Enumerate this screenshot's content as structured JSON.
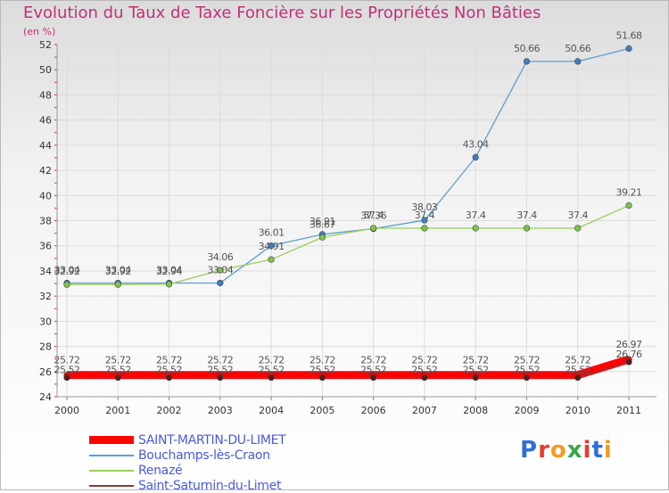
{
  "title": "Evolution du Taux de Taxe Foncière sur les Propriétés Non Bâties",
  "unit_label": "(en %)",
  "logo_text": "Proxiti",
  "chart_data": {
    "type": "line",
    "x": [
      "2000",
      "2001",
      "2002",
      "2003",
      "2004",
      "2005",
      "2006",
      "2007",
      "2008",
      "2009",
      "2010",
      "2011"
    ],
    "ylim": [
      24,
      52
    ],
    "yticks": [
      "24",
      "26",
      "28",
      "30",
      "32",
      "34",
      "36",
      "38",
      "40",
      "42",
      "44",
      "46",
      "48",
      "50",
      "52"
    ],
    "grid": true,
    "legend_position": "bottom-left",
    "series": [
      {
        "name": "SAINT-MARTIN-DU-LIMET",
        "color": "#ff0000",
        "values": [
          25.72,
          25.72,
          25.72,
          25.72,
          25.72,
          25.72,
          25.72,
          25.72,
          25.72,
          25.72,
          25.72,
          26.97
        ],
        "labels": [
          "25.72",
          "25.72",
          "25.72",
          "25.72",
          "25.72",
          "25.72",
          "25.72",
          "25.72",
          "25.72",
          "25.72",
          "25.72",
          "26.97"
        ]
      },
      {
        "name": "Bouchamps-lès-Craon",
        "color": "#5a9fd4",
        "values": [
          33.04,
          33.04,
          33.04,
          33.04,
          36.01,
          36.91,
          37.36,
          38.03,
          43.04,
          50.66,
          50.66,
          51.68
        ],
        "labels": [
          "33.04",
          "33.04",
          "33.04",
          "33.04",
          "36.01",
          "36.91",
          "37.36",
          "38.03",
          "43.04",
          "50.66",
          "50.66",
          "51.68"
        ]
      },
      {
        "name": "Renazé",
        "color": "#9acd5a",
        "values": [
          32.92,
          32.92,
          32.94,
          34.06,
          34.91,
          36.67,
          37.4,
          37.4,
          37.4,
          37.4,
          37.4,
          39.21
        ],
        "labels": [
          "32.92",
          "32.92",
          "32.94",
          "34.06",
          "34.91",
          "36.67",
          "37.4",
          "37.4",
          "37.4",
          "37.4",
          "37.4",
          "39.21"
        ]
      },
      {
        "name": "Saint-Saturnin-du-Limet",
        "color": "#8b3a3a",
        "values": [
          25.52,
          25.52,
          25.52,
          25.52,
          25.52,
          25.52,
          25.52,
          25.52,
          25.52,
          25.52,
          25.52,
          26.76
        ],
        "labels": [
          "25.52",
          "25.52",
          "25.52",
          "25.52",
          "25.52",
          "25.52",
          "25.52",
          "25.52",
          "25.52",
          "25.52",
          "25.52",
          "26.76"
        ]
      }
    ]
  }
}
